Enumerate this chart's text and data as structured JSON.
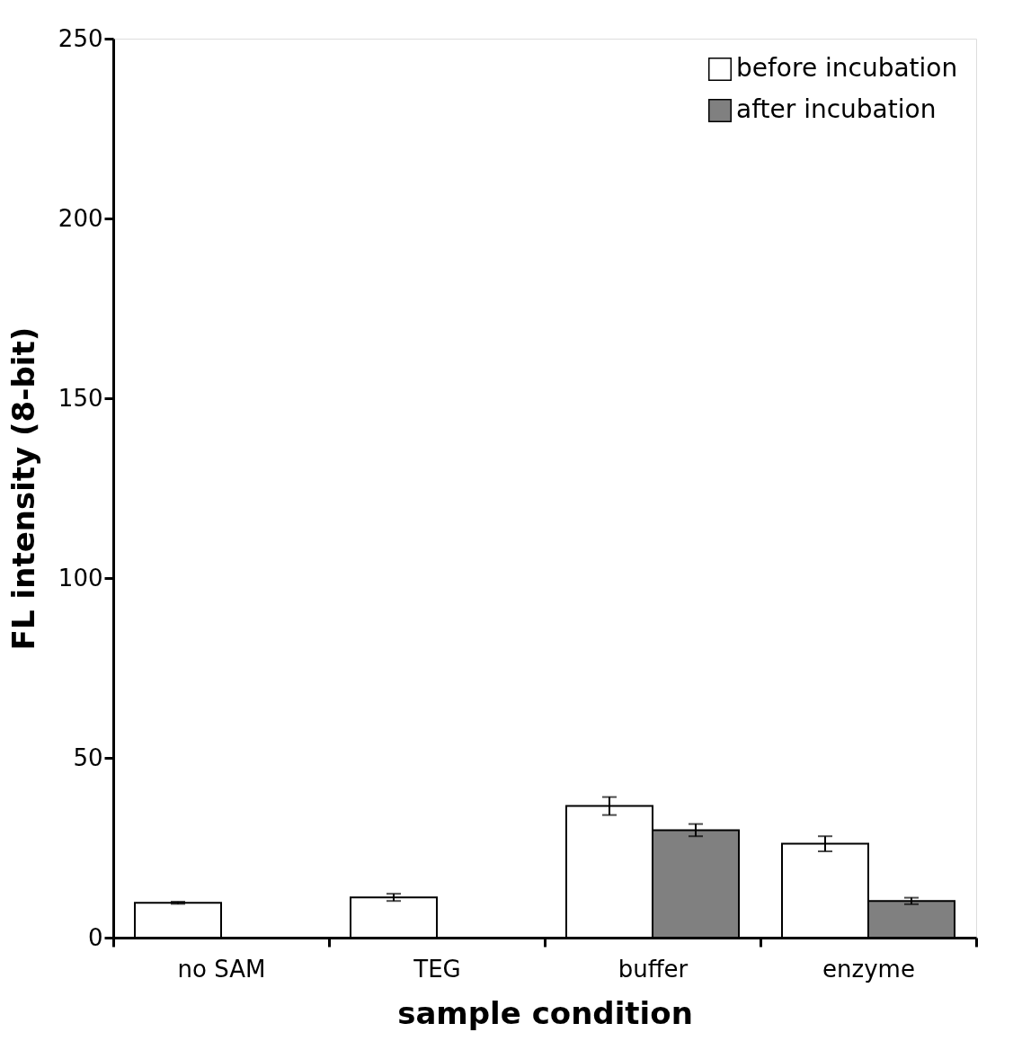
{
  "chart_data": {
    "type": "bar",
    "xlabel": "sample condition",
    "ylabel": "FL intensity (8-bit)",
    "categories": [
      "no SAM",
      "TEG",
      "buffer",
      "enzyme"
    ],
    "series": [
      {
        "name": "before incubation",
        "color": "#ffffff",
        "values": [
          9.7,
          11.2,
          36.6,
          26.1
        ],
        "errors": [
          0.3,
          1.0,
          2.5,
          2.1
        ]
      },
      {
        "name": "after incubation",
        "color": "#808080",
        "values": [
          null,
          null,
          29.9,
          10.2
        ],
        "errors": [
          null,
          null,
          1.7,
          0.9
        ]
      }
    ],
    "ylim": [
      0,
      250
    ],
    "yticks": [
      0,
      50,
      100,
      150,
      200,
      250
    ],
    "grid": false,
    "legend": "top right"
  }
}
